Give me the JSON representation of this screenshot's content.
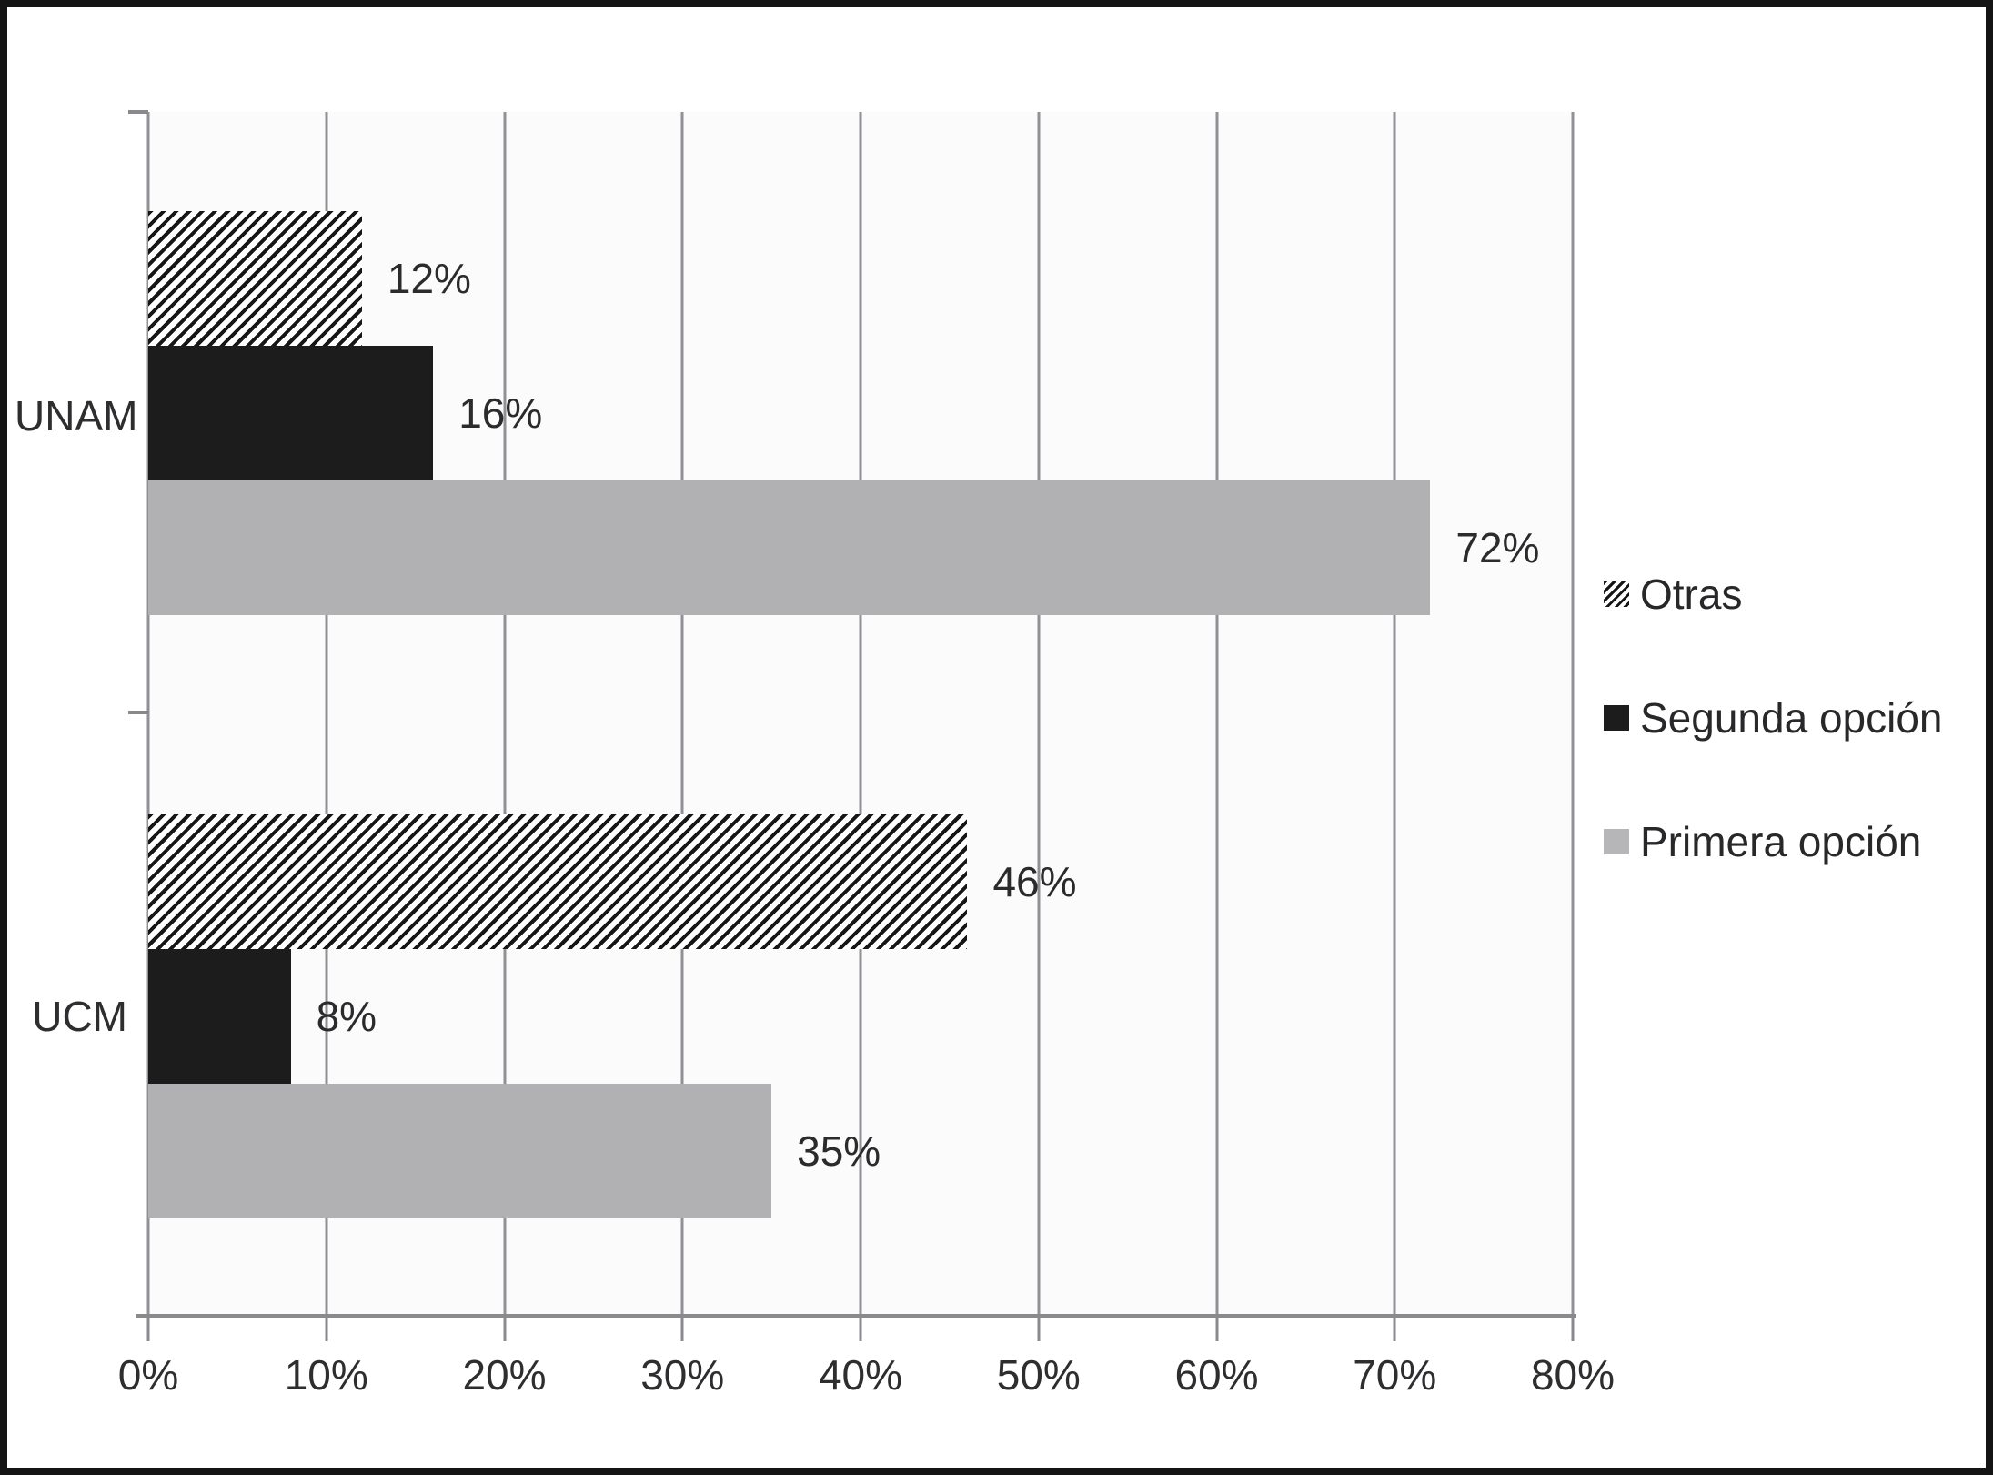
{
  "chart_data": {
    "type": "bar",
    "orientation": "horizontal",
    "title": "",
    "categories": [
      "UNAM",
      "UCM"
    ],
    "series": [
      {
        "name": "Otras",
        "style": "black-white-diagonal-hatch",
        "values": [
          12,
          46
        ],
        "labels": [
          "12%",
          "46%"
        ]
      },
      {
        "name": "Segunda opción",
        "style": "solid-black",
        "values": [
          16,
          8
        ],
        "labels": [
          "16%",
          "8%"
        ]
      },
      {
        "name": "Primera opción",
        "style": "solid-gray",
        "values": [
          72,
          35
        ],
        "labels": [
          "72%",
          "35%"
        ]
      }
    ],
    "xlim": [
      0,
      80
    ],
    "x_ticks": [
      "0%",
      "10%",
      "20%",
      "30%",
      "40%",
      "50%",
      "60%",
      "70%",
      "80%"
    ],
    "grid": true,
    "legend_position": "right",
    "data_labels_shown": true
  },
  "legend": {
    "items": [
      {
        "label": "Otras",
        "swatch": "hatch"
      },
      {
        "label": "Segunda opción",
        "swatch": "black"
      },
      {
        "label": "Primera opción",
        "swatch": "gray"
      }
    ]
  },
  "colors": {
    "bar_black": "#1c1c1c",
    "bar_gray": "#b1b1b3",
    "hatch_stripe": "#161616",
    "gridline": "#919195",
    "axis": "#8a8a8e",
    "text": "#2e2e30",
    "frame_border": "#141414",
    "plot_background": "#fbfbfb"
  }
}
